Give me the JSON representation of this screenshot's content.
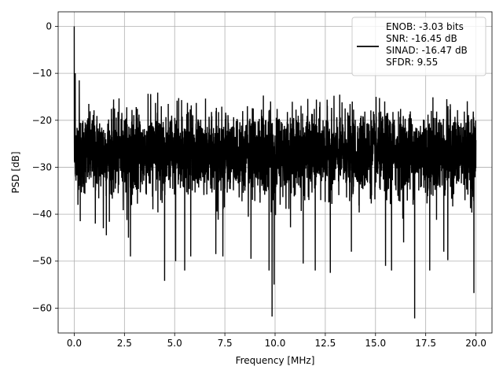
{
  "chart_data": {
    "type": "line",
    "title": "",
    "xlabel": "Frequency [MHz]",
    "ylabel": "PSD [dB]",
    "xlim": [
      -0.8,
      20.8
    ],
    "ylim": [
      -65.3,
      3.1
    ],
    "grid": true,
    "legend_position": "top-right",
    "line_color": "#000000",
    "x_ticks": [
      0,
      2.5,
      5,
      7.5,
      10,
      12.5,
      15,
      17.5,
      20
    ],
    "x_tick_labels": [
      "0.0",
      "2.5",
      "5.0",
      "7.5",
      "10.0",
      "12.5",
      "15.0",
      "17.5",
      "20.0"
    ],
    "y_ticks": [
      0,
      -10,
      -20,
      -30,
      -40,
      -50,
      -60
    ],
    "y_tick_labels": [
      "0",
      "−10",
      "−20",
      "−30",
      "−40",
      "−50",
      "−60"
    ],
    "legend_lines": [
      "ENOB: -3.03 bits",
      "SNR: -16.45 dB",
      "SINAD: -16.47 dB",
      "SFDR: 9.55"
    ],
    "series": [
      {
        "x_range": [
          0,
          20
        ],
        "mean": -27,
        "typical_upper_envelope": -18,
        "typical_lower_envelope": -38,
        "peaks": [
          {
            "x": 0.0,
            "y": 0
          },
          {
            "x": 0.05,
            "y": -10
          },
          {
            "x": 0.25,
            "y": -11.5
          },
          {
            "x": 0.02,
            "y": -29
          }
        ],
        "troughs": [
          {
            "x": 0.3,
            "y": -41.5
          },
          {
            "x": 1.05,
            "y": -42
          },
          {
            "x": 1.45,
            "y": -43
          },
          {
            "x": 1.6,
            "y": -44.5
          },
          {
            "x": 2.7,
            "y": -45
          },
          {
            "x": 2.8,
            "y": -49
          },
          {
            "x": 4.5,
            "y": -54.2
          },
          {
            "x": 5.05,
            "y": -50
          },
          {
            "x": 5.5,
            "y": -52
          },
          {
            "x": 5.8,
            "y": -49
          },
          {
            "x": 7.05,
            "y": -48.5
          },
          {
            "x": 7.4,
            "y": -49
          },
          {
            "x": 8.8,
            "y": -49.5
          },
          {
            "x": 9.7,
            "y": -52
          },
          {
            "x": 9.85,
            "y": -61.8
          },
          {
            "x": 9.95,
            "y": -55
          },
          {
            "x": 11.4,
            "y": -50.5
          },
          {
            "x": 12.0,
            "y": -52
          },
          {
            "x": 12.75,
            "y": -52.5
          },
          {
            "x": 13.8,
            "y": -48
          },
          {
            "x": 15.5,
            "y": -51
          },
          {
            "x": 15.8,
            "y": -52
          },
          {
            "x": 16.4,
            "y": -46
          },
          {
            "x": 16.95,
            "y": -62.2
          },
          {
            "x": 17.7,
            "y": -52
          },
          {
            "x": 18.4,
            "y": -48
          },
          {
            "x": 18.6,
            "y": -49.8
          },
          {
            "x": 19.9,
            "y": -56.8
          }
        ]
      }
    ]
  }
}
